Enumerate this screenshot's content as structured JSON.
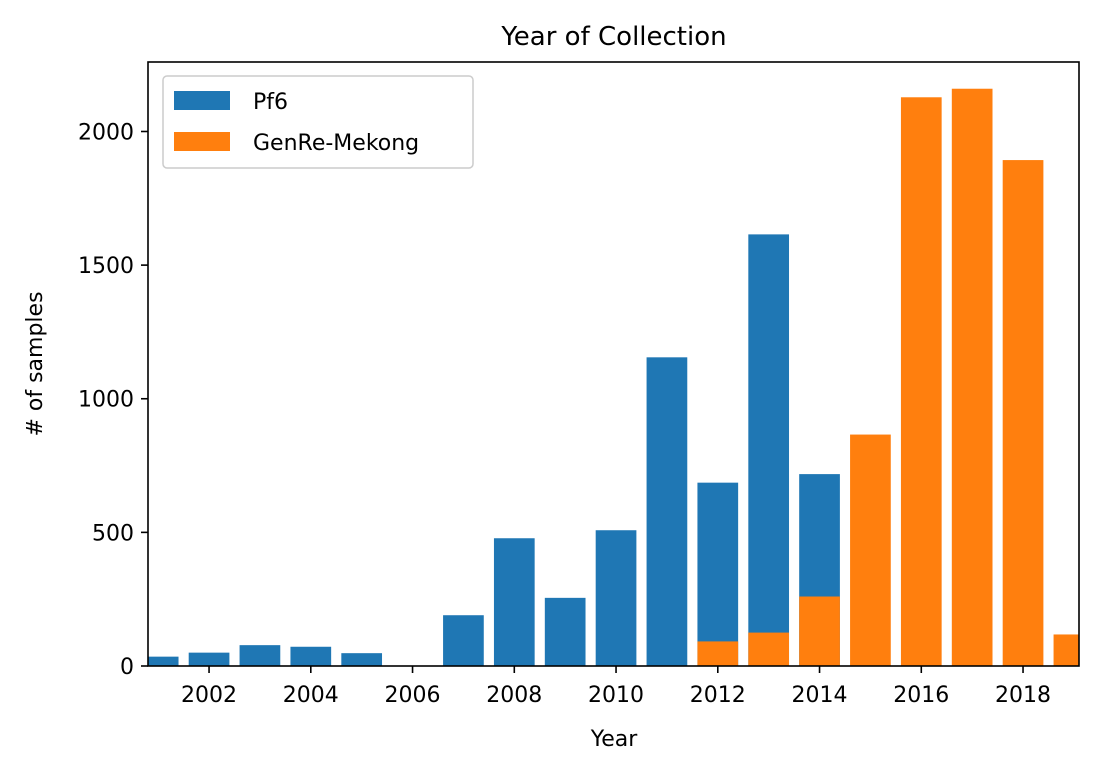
{
  "chart_data": {
    "type": "bar",
    "title": "Year of Collection",
    "xlabel": "Year",
    "ylabel": "# of samples",
    "x": [
      2001,
      2002,
      2003,
      2004,
      2005,
      2006,
      2007,
      2008,
      2009,
      2010,
      2011,
      2012,
      2013,
      2014,
      2015,
      2016,
      2017,
      2018,
      2019
    ],
    "xlim": [
      2000.8,
      2019.1
    ],
    "ylim": [
      0,
      2260
    ],
    "xticks": [
      2002,
      2004,
      2006,
      2008,
      2010,
      2012,
      2014,
      2016,
      2018
    ],
    "yticks": [
      0,
      500,
      1000,
      1500,
      2000
    ],
    "series": [
      {
        "name": "Pf6",
        "color": "#1f77b4",
        "values": [
          35,
          50,
          78,
          72,
          48,
          0,
          190,
          478,
          255,
          508,
          1155,
          686,
          1615,
          718,
          0,
          0,
          0,
          0,
          0
        ]
      },
      {
        "name": "GenRe-Mekong",
        "color": "#ff7f0e",
        "values": [
          0,
          0,
          0,
          0,
          0,
          0,
          0,
          0,
          0,
          0,
          0,
          92,
          125,
          260,
          866,
          2128,
          2160,
          1893,
          118
        ]
      }
    ],
    "legend": "top-left",
    "grid": false
  }
}
